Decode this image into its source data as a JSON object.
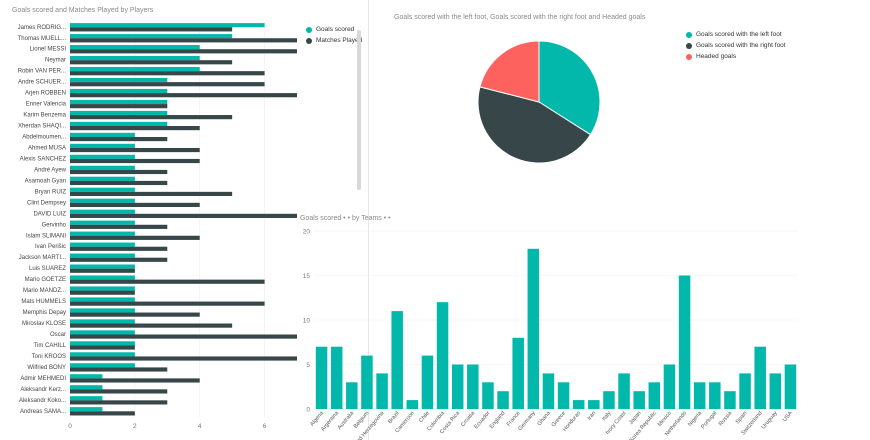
{
  "colors": {
    "teal": "#01b8aa",
    "dark": "#374649",
    "red": "#fd625e",
    "grid": "#eeeeee",
    "axis": "#777777"
  },
  "players_panel": {
    "title": "Goals scored and Matches Played by Players",
    "legend": [
      "Goals scored",
      "Matches Played"
    ]
  },
  "pie_panel": {
    "title": "Goals scored with the left foot, Goals scored with the right foot and Headed goals"
  },
  "teams_panel": {
    "title": "Goals scored • • by Teams • •"
  },
  "chart_data": [
    {
      "type": "bar",
      "orientation": "horizontal",
      "title": "Goals scored and Matches Played by Players",
      "categories": [
        "James RODRIG...",
        "Thomas MUELL...",
        "Lionel MESSI",
        "Neymar",
        "Robin VAN PER...",
        "Andre SCHUER...",
        "Arjen ROBBEN",
        "Enner Valencia",
        "Karim Benzema",
        "Xherdan SHAQI...",
        "Abdelmoumen...",
        "Ahmed MUSA",
        "Alexis SANCHEZ",
        "André Ayew",
        "Asamoah Gyan",
        "Bryan RUIZ",
        "Clint Dempsey",
        "DAVID LUIZ",
        "Gervinho",
        "Islam SLIMANI",
        "Ivan Perišic",
        "Jackson MARTI...",
        "Luis SUAREZ",
        "Mario GOETZE",
        "Mario MANDZ...",
        "Mats HUMMELS",
        "Memphis Depay",
        "Miroslav KLOSE",
        "Oscar",
        "Tim CAHILL",
        "Toni KROOS",
        "Wilfried BONY",
        "Admir MEHMEDI",
        "Aleksandr Kerz...",
        "Aleksandr Koko...",
        "Andreas SAMA..."
      ],
      "series": [
        {
          "name": "Goals scored",
          "values": [
            6,
            5,
            4,
            4,
            4,
            3,
            3,
            3,
            3,
            3,
            2,
            2,
            2,
            2,
            2,
            2,
            2,
            2,
            2,
            2,
            2,
            2,
            2,
            2,
            2,
            2,
            2,
            2,
            2,
            2,
            2,
            2,
            1,
            1,
            1,
            1
          ]
        },
        {
          "name": "Matches Played",
          "values": [
            5,
            7,
            7,
            5,
            6,
            6,
            7,
            3,
            5,
            4,
            3,
            4,
            4,
            3,
            3,
            5,
            4,
            7,
            3,
            4,
            3,
            3,
            2,
            6,
            2,
            6,
            4,
            5,
            7,
            2,
            7,
            3,
            4,
            3,
            3,
            2
          ]
        }
      ],
      "x_ticks": [
        0,
        2,
        4,
        6
      ],
      "xlim": [
        0,
        7
      ],
      "legend_position": "top-right"
    },
    {
      "type": "pie",
      "title": "Goals scored with the left foot, Goals scored with the right foot and Headed goals",
      "labels": [
        "Goals scored with the left foot",
        "Goals scored with the right foot",
        "Headed goals"
      ],
      "values": [
        34,
        45,
        21
      ],
      "legend_position": "right"
    },
    {
      "type": "bar",
      "orientation": "vertical",
      "title": "Goals scored • • by Teams • •",
      "categories": [
        "Algeria",
        "Argentina",
        "Australia",
        "Belgium",
        "Bosnia and Herzegovina",
        "Brazil",
        "Cameroon",
        "Chile",
        "Colombia",
        "Costa Rica",
        "Croatia",
        "Ecuador",
        "England",
        "France",
        "Germany",
        "Ghana",
        "Greece",
        "Honduras",
        "Iran",
        "Italy",
        "Ivory Coast",
        "Japan",
        "Korea Republic",
        "Mexico",
        "Netherlands",
        "Nigeria",
        "Portugal",
        "Russia",
        "Spain",
        "Switzerland",
        "Uruguay",
        "USA"
      ],
      "values": [
        7,
        7,
        3,
        6,
        4,
        11,
        1,
        6,
        12,
        5,
        5,
        3,
        2,
        8,
        18,
        4,
        3,
        1,
        1,
        2,
        4,
        2,
        3,
        5,
        15,
        3,
        3,
        2,
        4,
        7,
        4,
        5
      ],
      "y_ticks": [
        0,
        5,
        10,
        15,
        20
      ],
      "ylim": [
        0,
        20
      ],
      "grid": true
    }
  ]
}
